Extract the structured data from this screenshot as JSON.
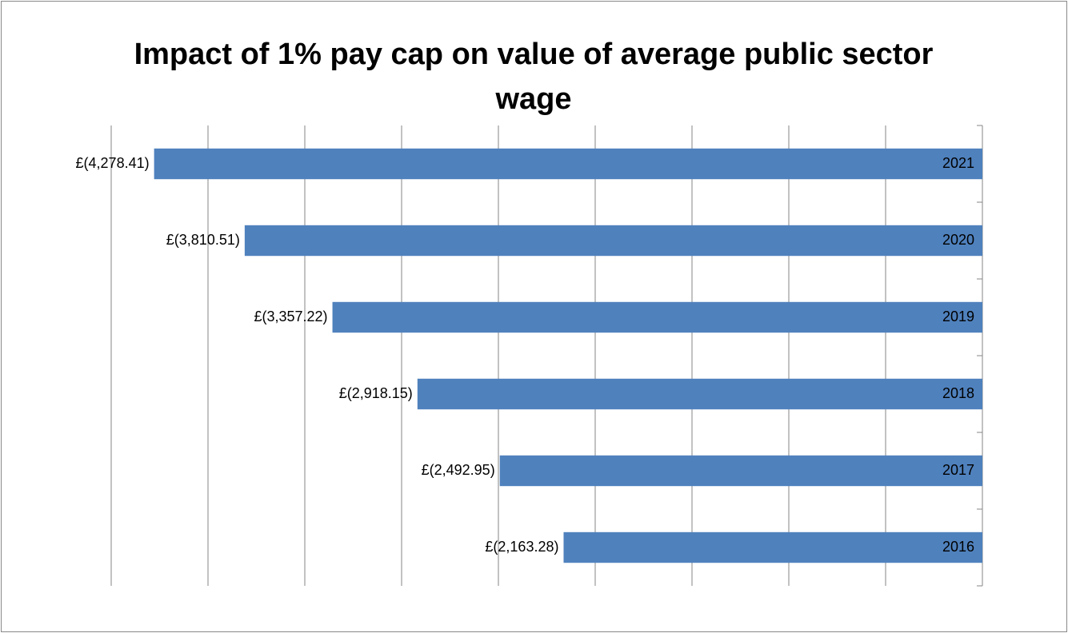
{
  "chart_data": {
    "type": "barh",
    "title": "Impact of 1% pay cap on value of average public sector wage",
    "categories": [
      "2016",
      "2017",
      "2018",
      "2019",
      "2020",
      "2021"
    ],
    "values": [
      -2163.28,
      -2492.95,
      -2918.15,
      -3357.22,
      -3810.51,
      -4278.41
    ],
    "value_labels": [
      "£(2,163.28)",
      "£(2,492.95)",
      "£(2,918.15)",
      "£(3,357.22)",
      "£(3,810.51)",
      "£(4,278.41)"
    ],
    "color": "#4f81bd",
    "xlim": [
      -4500,
      0
    ],
    "xticks": [
      -4500,
      -4000,
      -3500,
      -3000,
      -2500,
      -2000,
      -1500,
      -1000,
      -500,
      0
    ],
    "grid": true
  }
}
